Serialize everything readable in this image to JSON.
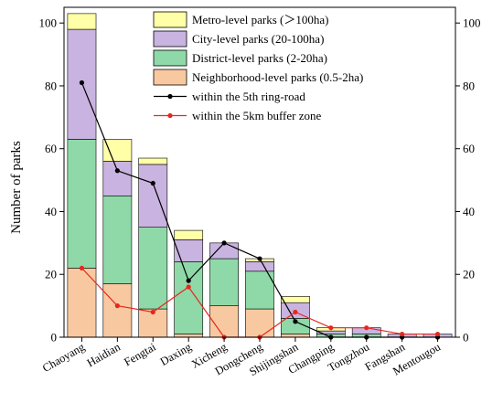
{
  "chart_data": {
    "type": "bar",
    "stacked": true,
    "ylabel": "Number of parks",
    "ylim": [
      0,
      105
    ],
    "yticks": [
      0,
      20,
      40,
      60,
      80,
      100
    ],
    "secondary_axis": {
      "ylim": [
        0,
        105
      ],
      "yticks": [
        0,
        20,
        40,
        60,
        80,
        100
      ]
    },
    "categories": [
      "Chaoyang",
      "Haidian",
      "Fengtai",
      "Daxing",
      "Xicheng",
      "Dongcheng",
      "Shijingshan",
      "Changping",
      "Tongzhou",
      "Fangshan",
      "Mentougou"
    ],
    "series": [
      {
        "name": "Neighborhood-level parks (0.5-2ha)",
        "color": "#f8c9a0",
        "values": [
          22,
          17,
          9,
          1,
          10,
          9,
          1,
          0,
          0,
          0,
          0
        ]
      },
      {
        "name": "District-level parks (2-20ha)",
        "color": "#8fd9a8",
        "values": [
          41,
          28,
          26,
          23,
          15,
          12,
          5,
          1,
          1,
          0,
          0
        ]
      },
      {
        "name": "City-level parks (20-100ha)",
        "color": "#c9b3e0",
        "values": [
          35,
          11,
          20,
          7,
          5,
          3,
          5,
          1,
          2,
          1,
          1
        ]
      },
      {
        "name": "Metro-level parks (＞100ha)",
        "color": "#ffffa8",
        "values": [
          5,
          7,
          2,
          3,
          0,
          1,
          2,
          1,
          0,
          0,
          0
        ]
      }
    ],
    "lines": [
      {
        "name": "within the 5th ring-road",
        "color": "#000000",
        "values": [
          81,
          53,
          49,
          18,
          30,
          25,
          5,
          0,
          0,
          0,
          0
        ]
      },
      {
        "name": "within the 5km buffer zone",
        "color": "#e8261d",
        "values": [
          22,
          10,
          8,
          16,
          0,
          0,
          8,
          3,
          3,
          1,
          1
        ]
      }
    ],
    "legend_order": [
      "Metro-level parks (＞100ha)",
      "City-level parks (20-100ha)",
      "District-level parks (2-20ha)",
      "Neighborhood-level parks (0.5-2ha)",
      "within the 5th ring-road",
      "within the 5km buffer zone"
    ],
    "legend_position": "top-right"
  }
}
